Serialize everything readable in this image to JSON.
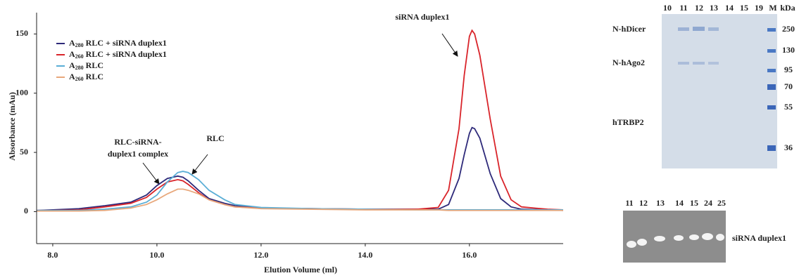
{
  "chart_data": {
    "type": "line",
    "y_label": "Absorbance (mAu)",
    "x_label": "Elution Volume (ml)",
    "x": [
      7.7,
      8.0,
      8.5,
      9.0,
      9.5,
      9.8,
      10.0,
      10.2,
      10.4,
      10.5,
      10.6,
      10.8,
      11.0,
      11.3,
      11.5,
      12.0,
      13.0,
      14.0,
      15.0,
      15.4,
      15.6,
      15.8,
      15.9,
      16.0,
      16.05,
      16.1,
      16.2,
      16.4,
      16.6,
      16.8,
      17.0,
      17.5,
      17.8
    ],
    "series": [
      {
        "name": "A280 RLC + siRNA duplex1",
        "color": "#2e2a7a",
        "values": [
          1,
          1.5,
          2.5,
          5,
          8,
          14,
          22,
          28,
          30,
          29,
          26,
          18,
          11,
          7,
          5,
          3,
          2.5,
          2,
          2,
          2,
          6,
          28,
          48,
          66,
          71,
          70,
          62,
          32,
          11,
          4,
          2,
          1.5,
          1
        ]
      },
      {
        "name": "A260 RLC + siRNA duplex1",
        "color": "#d9242a",
        "values": [
          1,
          1,
          1.5,
          4,
          7,
          12,
          19,
          25,
          27,
          26,
          23,
          16,
          10,
          6,
          4,
          3,
          2.5,
          2,
          2,
          3.5,
          18,
          70,
          115,
          148,
          153,
          150,
          132,
          78,
          30,
          10,
          4,
          2,
          1.5
        ]
      },
      {
        "name": "A280 RLC",
        "color": "#5aaed6",
        "values": [
          1,
          1,
          1,
          2,
          4,
          8,
          14,
          25,
          33,
          34,
          33,
          27,
          18,
          10,
          6,
          3.5,
          2.5,
          2,
          1.5,
          1.5,
          1.5,
          1.5,
          1.5,
          1.5,
          1.5,
          1.5,
          1.5,
          1.5,
          1.5,
          1.5,
          1.5,
          1.5,
          1.5
        ]
      },
      {
        "name": "A260 RLC",
        "color": "#e8a87c",
        "values": [
          0.5,
          0.5,
          0.5,
          1,
          3,
          6,
          10,
          15,
          19,
          19,
          18,
          15,
          10,
          6,
          4,
          2.5,
          2,
          1.5,
          1.5,
          1.5,
          1,
          1,
          1,
          1,
          1,
          1,
          1,
          1,
          1,
          1,
          1,
          1,
          1
        ]
      }
    ],
    "xlim": [
      7.69,
      17.8
    ],
    "ylim": [
      -27,
      168
    ],
    "xticks": [
      {
        "value": 8,
        "label": "8.0"
      },
      {
        "value": 10,
        "label": "10.0"
      },
      {
        "value": 12,
        "label": "12.0"
      },
      {
        "value": 14,
        "label": "14.0"
      },
      {
        "value": 16,
        "label": "16.0"
      }
    ],
    "yticks": [
      0,
      50,
      100,
      150
    ],
    "grid": false,
    "legend": "upper left",
    "annotations": [
      [
        "siRNA duplex1"
      ],
      [
        "RLC"
      ],
      [
        "RLC-siRNA-",
        "duplex1 complex"
      ]
    ]
  },
  "gels": {
    "protein_gel": {
      "lanes": [
        "10",
        "11",
        "12",
        "13",
        "14",
        "15",
        "19",
        "M",
        "kDa"
      ],
      "proteins": [
        "N-hDicer",
        "N-hAgo2",
        "hTRBP2"
      ],
      "markers": [
        "250",
        "130",
        "95",
        "70",
        "55",
        "36"
      ]
    },
    "rna_gel": {
      "lanes": [
        "11",
        "12",
        "13",
        "14",
        "15",
        "24",
        "25"
      ],
      "label": "siRNA duplex1"
    }
  }
}
